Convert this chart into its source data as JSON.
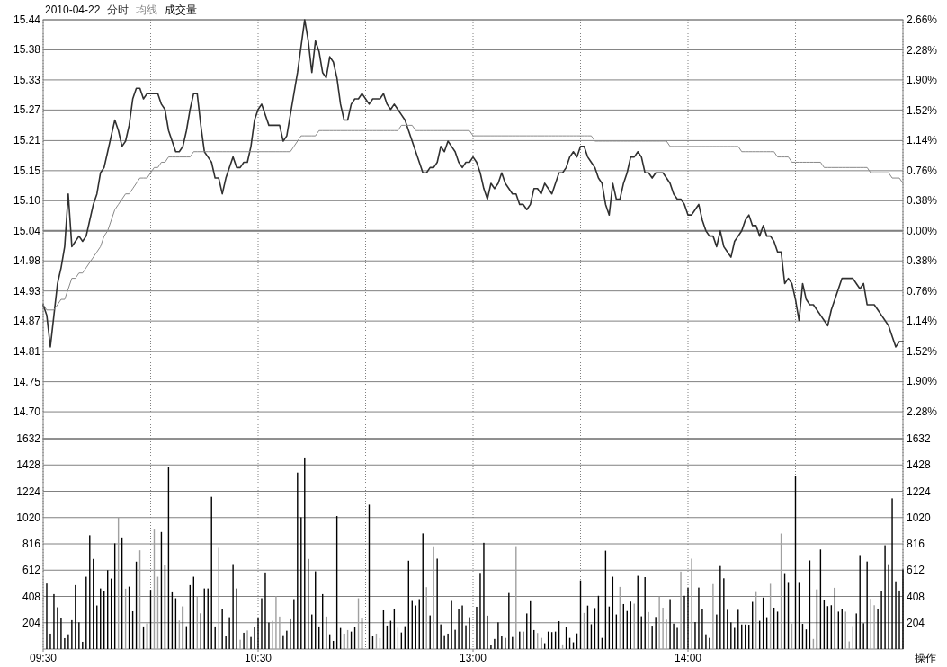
{
  "chart_data": [
    {
      "type": "line",
      "title": "2010-04-22",
      "legend": "top left",
      "grid": true,
      "tick_labels": "y",
      "categories": [
        null,
        null,
        null,
        null,
        null,
        null,
        null,
        null,
        null,
        null,
        null,
        null,
        null,
        null,
        null,
        null,
        null,
        null,
        null,
        null,
        null,
        null,
        null,
        null,
        null,
        null,
        null,
        null,
        null,
        null,
        null,
        null,
        null,
        null,
        null,
        null,
        null,
        null,
        null,
        null,
        null,
        null,
        null,
        null,
        null,
        null,
        null,
        null,
        null,
        null,
        null,
        null,
        null,
        null,
        null,
        null,
        null,
        null,
        null,
        null,
        null,
        null,
        null,
        null,
        null,
        null,
        null,
        null,
        null,
        null,
        null,
        null,
        null,
        null,
        null,
        null,
        null,
        null,
        null,
        null,
        null,
        null,
        null,
        null,
        null,
        null,
        null,
        null,
        null,
        null,
        null,
        null,
        null,
        null,
        null,
        null,
        null,
        null,
        null,
        null,
        null,
        null,
        null,
        null,
        null,
        null,
        null,
        null,
        null,
        null,
        null,
        null,
        null,
        null,
        null,
        null,
        null,
        null,
        null,
        null,
        null,
        null,
        null,
        null,
        null,
        null,
        null,
        null,
        null,
        null,
        null,
        null,
        null,
        null,
        null,
        null,
        null,
        null,
        null,
        null,
        null,
        null,
        null,
        null,
        null,
        null,
        null,
        null,
        null,
        null,
        null,
        null,
        null,
        null,
        null,
        null,
        null,
        null,
        null,
        null,
        null,
        null,
        null,
        null,
        null,
        null,
        null,
        null,
        null,
        null,
        null,
        null,
        null,
        null,
        null,
        null,
        null,
        null,
        null,
        null,
        null,
        null,
        null,
        null,
        null,
        null,
        null,
        null,
        null,
        null,
        null,
        null,
        null,
        null,
        null,
        null,
        null,
        null,
        null,
        null,
        null,
        null,
        null,
        null,
        null,
        null,
        null,
        null,
        null,
        null,
        null,
        null,
        null,
        null,
        null,
        null,
        null,
        null,
        null,
        null,
        null,
        null,
        null,
        null,
        null,
        null,
        null,
        null,
        null,
        null,
        null,
        null,
        null,
        null,
        null,
        null,
        null,
        null,
        null,
        null,
        null
      ],
      "ylim": [
        14.646,
        15.44
      ],
      "yticks": [
        {
          "value": 15.44,
          "label": "15.44"
        },
        {
          "value": 15.383,
          "label": "15.38"
        },
        {
          "value": 15.326,
          "label": "15.33"
        },
        {
          "value": 15.269,
          "label": "15.27"
        },
        {
          "value": 15.211,
          "label": "15.21"
        },
        {
          "value": 15.154,
          "label": "15.15"
        },
        {
          "value": 15.097,
          "label": "15.10"
        },
        {
          "value": 15.04,
          "label": "15.04"
        },
        {
          "value": 14.983,
          "label": "14.98"
        },
        {
          "value": 14.926,
          "label": "14.93"
        },
        {
          "value": 14.869,
          "label": "14.87"
        },
        {
          "value": 14.811,
          "label": "14.81"
        },
        {
          "value": 14.754,
          "label": "14.75"
        },
        {
          "value": 14.697,
          "label": "14.70"
        }
      ],
      "y2lim": [
        -2.62,
        2.66
      ],
      "y2ticks": [
        {
          "value": 2.66,
          "label": "2.66%"
        },
        {
          "value": 2.28,
          "label": "2.28%"
        },
        {
          "value": 1.9,
          "label": "1.90%"
        },
        {
          "value": 1.52,
          "label": "1.52%"
        },
        {
          "value": 1.14,
          "label": "1.14%"
        },
        {
          "value": 0.76,
          "label": "0.76%"
        },
        {
          "value": 0.38,
          "label": "0.38%"
        },
        {
          "value": 0,
          "label": "0.00%"
        },
        {
          "value": -0.38,
          "label": "0.38%"
        },
        {
          "value": -0.76,
          "label": "0.76%"
        },
        {
          "value": -1.14,
          "label": "1.14%"
        },
        {
          "value": -1.52,
          "label": "1.52%"
        },
        {
          "value": -1.9,
          "label": "1.90%"
        },
        {
          "value": -2.28,
          "label": "2.28%"
        }
      ],
      "ref_lines": [
        {
          "axis": "y",
          "value": 15.04,
          "color": "#808080"
        }
      ],
      "series": [
        {
          "name": "分时",
          "color": "#303030",
          "values": [
            14.9,
            14.88,
            14.82,
            14.88,
            14.94,
            14.97,
            15.01,
            15.11,
            15.01,
            15.02,
            15.03,
            15.02,
            15.03,
            15.06,
            15.09,
            15.11,
            15.15,
            15.16,
            15.19,
            15.22,
            15.25,
            15.23,
            15.2,
            15.21,
            15.24,
            15.29,
            15.31,
            15.31,
            15.29,
            15.3,
            15.3,
            15.3,
            15.3,
            15.28,
            15.27,
            15.23,
            15.21,
            15.19,
            15.19,
            15.2,
            15.23,
            15.27,
            15.3,
            15.3,
            15.24,
            15.19,
            15.18,
            15.17,
            15.14,
            15.14,
            15.11,
            15.14,
            15.16,
            15.18,
            15.16,
            15.16,
            15.17,
            15.17,
            15.2,
            15.25,
            15.27,
            15.28,
            15.26,
            15.24,
            15.24,
            15.24,
            15.24,
            15.21,
            15.22,
            15.26,
            15.3,
            15.34,
            15.39,
            15.44,
            15.4,
            15.34,
            15.4,
            15.38,
            15.34,
            15.33,
            15.37,
            15.36,
            15.33,
            15.28,
            15.25,
            15.25,
            15.28,
            15.29,
            15.29,
            15.3,
            15.29,
            15.28,
            15.29,
            15.29,
            15.29,
            15.3,
            15.28,
            15.27,
            15.28,
            15.27,
            15.26,
            15.25,
            15.23,
            15.21,
            15.19,
            15.17,
            15.15,
            15.15,
            15.16,
            15.16,
            15.17,
            15.2,
            15.19,
            15.21,
            15.2,
            15.19,
            15.17,
            15.16,
            15.17,
            15.17,
            15.18,
            15.17,
            15.15,
            15.12,
            15.1,
            15.13,
            15.12,
            15.13,
            15.15,
            15.13,
            15.12,
            15.11,
            15.11,
            15.09,
            15.09,
            15.08,
            15.09,
            15.12,
            15.12,
            15.11,
            15.13,
            15.12,
            15.11,
            15.13,
            15.15,
            15.15,
            15.16,
            15.18,
            15.19,
            15.18,
            15.2,
            15.2,
            15.18,
            15.17,
            15.16,
            15.14,
            15.13,
            15.09,
            15.07,
            15.13,
            15.1,
            15.1,
            15.13,
            15.15,
            15.18,
            15.18,
            15.19,
            15.18,
            15.15,
            15.15,
            15.14,
            15.15,
            15.15,
            15.15,
            15.14,
            15.13,
            15.11,
            15.1,
            15.1,
            15.09,
            15.07,
            15.07,
            15.08,
            15.09,
            15.06,
            15.04,
            15.03,
            15.03,
            15.01,
            15.04,
            15.01,
            15.0,
            14.99,
            15.02,
            15.03,
            15.04,
            15.06,
            15.07,
            15.05,
            15.05,
            15.03,
            15.05,
            15.03,
            15.03,
            15.02,
            15.0,
            15.0,
            14.94,
            14.95,
            14.94,
            14.91,
            14.87,
            14.94,
            14.91,
            14.9,
            14.9,
            14.89,
            14.88,
            14.87,
            14.86,
            14.89,
            14.91,
            14.93,
            14.95,
            14.95,
            14.95,
            14.95,
            14.94,
            14.93,
            14.94,
            14.9,
            14.9,
            14.9,
            14.89,
            14.88,
            14.87,
            14.86,
            14.84,
            14.82,
            14.83,
            14.83
          ]
        },
        {
          "name": "均线",
          "color": "#888888",
          "values": [
            14.9,
            14.89,
            14.89,
            14.89,
            14.9,
            14.91,
            14.91,
            14.93,
            14.95,
            14.95,
            14.96,
            14.96,
            14.97,
            14.98,
            14.99,
            15.0,
            15.01,
            15.03,
            15.04,
            15.06,
            15.08,
            15.09,
            15.1,
            15.11,
            15.11,
            15.12,
            15.13,
            15.14,
            15.14,
            15.14,
            15.15,
            15.16,
            15.16,
            15.17,
            15.17,
            15.18,
            15.18,
            15.18,
            15.18,
            15.18,
            15.18,
            15.18,
            15.19,
            15.19,
            15.19,
            15.19,
            15.19,
            15.19,
            15.19,
            15.19,
            15.19,
            15.19,
            15.19,
            15.19,
            15.19,
            15.19,
            15.19,
            15.19,
            15.19,
            15.19,
            15.19,
            15.19,
            15.19,
            15.19,
            15.19,
            15.19,
            15.19,
            15.19,
            15.19,
            15.19,
            15.2,
            15.21,
            15.22,
            15.22,
            15.22,
            15.22,
            15.22,
            15.23,
            15.23,
            15.23,
            15.23,
            15.23,
            15.23,
            15.23,
            15.23,
            15.23,
            15.23,
            15.23,
            15.23,
            15.23,
            15.23,
            15.23,
            15.23,
            15.23,
            15.23,
            15.23,
            15.23,
            15.23,
            15.23,
            15.23,
            15.24,
            15.24,
            15.24,
            15.24,
            15.23,
            15.23,
            15.23,
            15.23,
            15.23,
            15.23,
            15.23,
            15.23,
            15.23,
            15.23,
            15.23,
            15.23,
            15.23,
            15.23,
            15.23,
            15.23,
            15.22,
            15.22,
            15.22,
            15.22,
            15.22,
            15.22,
            15.22,
            15.22,
            15.22,
            15.22,
            15.22,
            15.22,
            15.22,
            15.22,
            15.22,
            15.22,
            15.22,
            15.22,
            15.22,
            15.22,
            15.22,
            15.22,
            15.22,
            15.22,
            15.22,
            15.22,
            15.22,
            15.22,
            15.22,
            15.22,
            15.22,
            15.22,
            15.22,
            15.22,
            15.21,
            15.21,
            15.21,
            15.21,
            15.21,
            15.21,
            15.21,
            15.21,
            15.21,
            15.21,
            15.21,
            15.21,
            15.21,
            15.21,
            15.21,
            15.21,
            15.21,
            15.21,
            15.21,
            15.21,
            15.21,
            15.2,
            15.2,
            15.2,
            15.2,
            15.2,
            15.2,
            15.2,
            15.2,
            15.2,
            15.2,
            15.2,
            15.2,
            15.2,
            15.2,
            15.2,
            15.2,
            15.2,
            15.2,
            15.2,
            15.2,
            15.19,
            15.19,
            15.19,
            15.19,
            15.19,
            15.19,
            15.19,
            15.19,
            15.19,
            15.19,
            15.18,
            15.18,
            15.18,
            15.18,
            15.17,
            15.17,
            15.17,
            15.17,
            15.17,
            15.17,
            15.17,
            15.17,
            15.17,
            15.16,
            15.16,
            15.16,
            15.16,
            15.16,
            15.16,
            15.16,
            15.16,
            15.16,
            15.16,
            15.16,
            15.16,
            15.16,
            15.15,
            15.15,
            15.15,
            15.15,
            15.15,
            15.15,
            15.14,
            15.14,
            15.14,
            15.13
          ]
        }
      ]
    },
    {
      "type": "bar",
      "legend": "top left",
      "grid": true,
      "categories": [
        "09:30",
        null,
        null,
        null,
        null,
        null,
        null,
        null,
        null,
        null,
        null,
        null,
        null,
        null,
        null,
        null,
        null,
        null,
        null,
        null,
        null,
        null,
        null,
        null,
        null,
        null,
        null,
        null,
        null,
        null,
        null,
        null,
        null,
        null,
        null,
        null,
        null,
        null,
        null,
        null,
        null,
        null,
        null,
        null,
        null,
        null,
        null,
        null,
        null,
        null,
        null,
        null,
        null,
        null,
        null,
        null,
        null,
        null,
        null,
        null,
        "10:30",
        null,
        null,
        null,
        null,
        null,
        null,
        null,
        null,
        null,
        null,
        null,
        null,
        null,
        null,
        null,
        null,
        null,
        null,
        null,
        null,
        null,
        null,
        null,
        null,
        null,
        null,
        null,
        null,
        null,
        null,
        null,
        null,
        null,
        null,
        null,
        null,
        null,
        null,
        null,
        null,
        null,
        null,
        null,
        null,
        null,
        null,
        null,
        null,
        null,
        null,
        null,
        null,
        null,
        null,
        null,
        null,
        null,
        null,
        null,
        "13:00",
        null,
        null,
        null,
        null,
        null,
        null,
        null,
        null,
        null,
        null,
        null,
        null,
        null,
        null,
        null,
        null,
        null,
        null,
        null,
        null,
        null,
        null,
        null,
        null,
        null,
        null,
        null,
        null,
        null,
        null,
        null,
        null,
        null,
        null,
        null,
        null,
        null,
        null,
        null,
        null,
        null,
        null,
        null,
        null,
        null,
        null,
        null,
        null,
        null,
        null,
        null,
        null,
        null,
        null,
        null,
        null,
        null,
        null,
        null,
        "14:00",
        null,
        null,
        null,
        null,
        null,
        null,
        null,
        null,
        null,
        null,
        null,
        null,
        null,
        null,
        null,
        null,
        null,
        null,
        null,
        null,
        null,
        null,
        null,
        null,
        null,
        null,
        null,
        null,
        null,
        null,
        null,
        null,
        null,
        null,
        null,
        null,
        null,
        null,
        null,
        null,
        null,
        null,
        null,
        null,
        null,
        null,
        null,
        null,
        null,
        null,
        null,
        null,
        null,
        null,
        null,
        null,
        null,
        null,
        null,
        null
      ],
      "ylim": [
        0,
        1632
      ],
      "yticks": [
        204,
        408,
        612,
        816,
        1020,
        1224,
        1428,
        1632
      ],
      "y2lim": [
        0,
        1632
      ],
      "y2ticks": [
        204,
        408,
        612,
        816,
        1020,
        1224,
        1428,
        1632
      ],
      "annotations": [
        "操作"
      ],
      "series": [
        {
          "name": "成交量",
          "color": "#000000",
          "values": [
            null,
            508,
            119,
            426,
            324,
            238,
            84,
            114,
            224,
            496,
            207,
            56,
            561,
            883,
            699,
            338,
            470,
            447,
            612,
            547,
            820,
            1022,
            866,
            468,
            484,
            293,
            678,
            766,
            175,
            198,
            459,
            927,
            561,
            908,
            652,
            1411,
            440,
            394,
            221,
            331,
            177,
            496,
            561,
            405,
            277,
            470,
            470,
            1181,
            175,
            785,
            307,
            98,
            247,
            659,
            470,
            72,
            126,
            144,
            93,
            170,
            238,
            394,
            594,
            205,
            219,
            410,
            252,
            107,
            142,
            231,
            387,
            1369,
            1022,
            1486,
            699,
            268,
            603,
            175,
            426,
            252,
            114,
            63,
            1032,
            163,
            119,
            147,
            135,
            170,
            394,
            238,
            0,
            1120,
            100,
            119,
            84,
            300,
            182,
            219,
            314,
            165,
            128,
            177,
            685,
            373,
            338,
            387,
            897,
            480,
            261,
            797,
            701,
            191,
            107,
            119,
            373,
            149,
            310,
            338,
            184,
            247,
            0,
            328,
            591,
            824,
            259,
            31,
            78,
            207,
            102,
            86,
            435,
            93,
            798,
            135,
            135,
            276,
            371,
            147,
            124,
            86,
            45,
            135,
            131,
            135,
            216,
            36,
            171,
            86,
            52,
            121,
            532,
            280,
            337,
            192,
            318,
            413,
            86,
            763,
            330,
            561,
            268,
            482,
            349,
            295,
            368,
            352,
            568,
            254,
            558,
            287,
            181,
            249,
            406,
            321,
            228,
            387,
            197,
            164,
            601,
            413,
            475,
            701,
            209,
            477,
            311,
            114,
            86,
            504,
            268,
            644,
            549,
            304,
            207,
            164,
            304,
            190,
            190,
            188,
            366,
            442,
            219,
            399,
            247,
            506,
            321,
            290,
            896,
            589,
            520,
            197,
            1340,
            520,
            195,
            152,
            687,
            78,
            463,
            772,
            380,
            333,
            340,
            475,
            290,
            311,
            290,
            59,
            178,
            276,
            729,
            200,
            679,
            390,
            340,
            314,
            451,
            805,
            658,
            1169,
            525,
            454,
            618
          ],
          "colors": [
            "#000000",
            "#000000",
            "#000000",
            "#000000",
            "#000000",
            "#000000",
            "#000000",
            "#000000",
            "#000000",
            "#000000",
            "#000000",
            "#000000",
            "#000000",
            "#000000",
            "#000000",
            "#000000",
            "#000000",
            "#000000",
            "#000000",
            "#000000",
            "#000000",
            "#a0a0a0",
            "#000000",
            "#a0a0a0",
            "#000000",
            "#000000",
            "#000000",
            "#a0a0a0",
            "#000000",
            "#000000",
            "#000000",
            "#a0a0a0",
            "#a0a0a0",
            "#000000",
            "#000000",
            "#000000",
            "#000000",
            "#000000",
            "#a0a0a0",
            "#000000",
            "#000000",
            "#000000",
            "#000000",
            "#a0a0a0",
            "#000000",
            "#000000",
            "#000000",
            "#000000",
            "#000000",
            "#a0a0a0",
            "#000000",
            "#000000",
            "#000000",
            "#000000",
            "#000000",
            "#a0a0a0",
            "#000000",
            "#a0a0a0",
            "#000000",
            "#000000",
            "#000000",
            "#000000",
            "#000000",
            "#000000",
            "#a0a0a0",
            "#a0a0a0",
            "#a0a0a0",
            "#000000",
            "#000000",
            "#000000",
            "#000000",
            "#000000",
            "#000000",
            "#000000",
            "#000000",
            "#000000",
            "#000000",
            "#000000",
            "#000000",
            "#000000",
            "#000000",
            "#000000",
            "#000000",
            "#000000",
            "#000000",
            "#a0a0a0",
            "#000000",
            "#000000",
            "#a0a0a0",
            "#000000",
            "#000000",
            "#000000",
            "#000000",
            "#a0a0a0",
            "#a0a0a0",
            "#000000",
            "#000000",
            "#000000",
            "#000000",
            "#a0a0a0",
            "#000000",
            "#000000",
            "#000000",
            "#000000",
            "#000000",
            "#000000",
            "#000000",
            "#a0a0a0",
            "#000000",
            "#a0a0a0",
            "#000000",
            "#000000",
            "#000000",
            "#000000",
            "#000000",
            "#000000",
            "#000000",
            "#000000",
            "#000000",
            "#000000",
            "#000000",
            "#000000",
            "#000000",
            "#000000",
            "#000000",
            "#000000",
            "#000000",
            "#000000",
            "#000000",
            "#000000",
            "#000000",
            "#000000",
            "#a0a0a0",
            "#000000",
            "#000000",
            "#000000",
            "#000000",
            "#000000",
            "#a0a0a0",
            "#000000",
            "#000000",
            "#000000",
            "#000000",
            "#000000",
            "#000000",
            "#a0a0a0",
            "#000000",
            "#000000",
            "#000000",
            "#000000",
            "#000000",
            "#a0a0a0",
            "#000000",
            "#000000",
            "#000000",
            "#000000",
            "#000000",
            "#000000",
            "#000000",
            "#000000",
            "#000000",
            "#a0a0a0",
            "#000000",
            "#000000",
            "#000000",
            "#a0a0a0",
            "#000000",
            "#000000",
            "#000000",
            "#a0a0a0",
            "#000000",
            "#000000",
            "#a0a0a0",
            "#a0a0a0",
            "#a0a0a0",
            "#000000",
            "#000000",
            "#000000",
            "#a0a0a0",
            "#000000",
            "#000000",
            "#a0a0a0",
            "#000000",
            "#000000",
            "#000000",
            "#000000",
            "#000000",
            "#a0a0a0",
            "#000000",
            "#000000",
            "#000000",
            "#000000",
            "#000000",
            "#000000",
            "#000000",
            "#000000",
            "#000000",
            "#000000",
            "#000000",
            "#a0a0a0",
            "#000000",
            "#000000",
            "#000000",
            "#a0a0a0",
            "#000000",
            "#000000",
            "#a0a0a0",
            "#000000",
            "#000000",
            "#a0a0a0",
            "#000000",
            "#000000",
            "#000000",
            "#000000",
            "#000000",
            "#a0a0a0",
            "#000000",
            "#000000",
            "#000000",
            "#000000",
            "#000000",
            "#000000",
            "#000000",
            "#000000",
            "#a0a0a0",
            "#a0a0a0",
            "#a0a0a0",
            "#000000",
            "#000000",
            "#000000",
            "#000000",
            "#a0a0a0",
            "#a0a0a0",
            "#000000",
            "#000000",
            "#000000",
            "#000000",
            "#000000",
            "#000000",
            "#000000",
            "#000000"
          ]
        }
      ]
    }
  ]
}
